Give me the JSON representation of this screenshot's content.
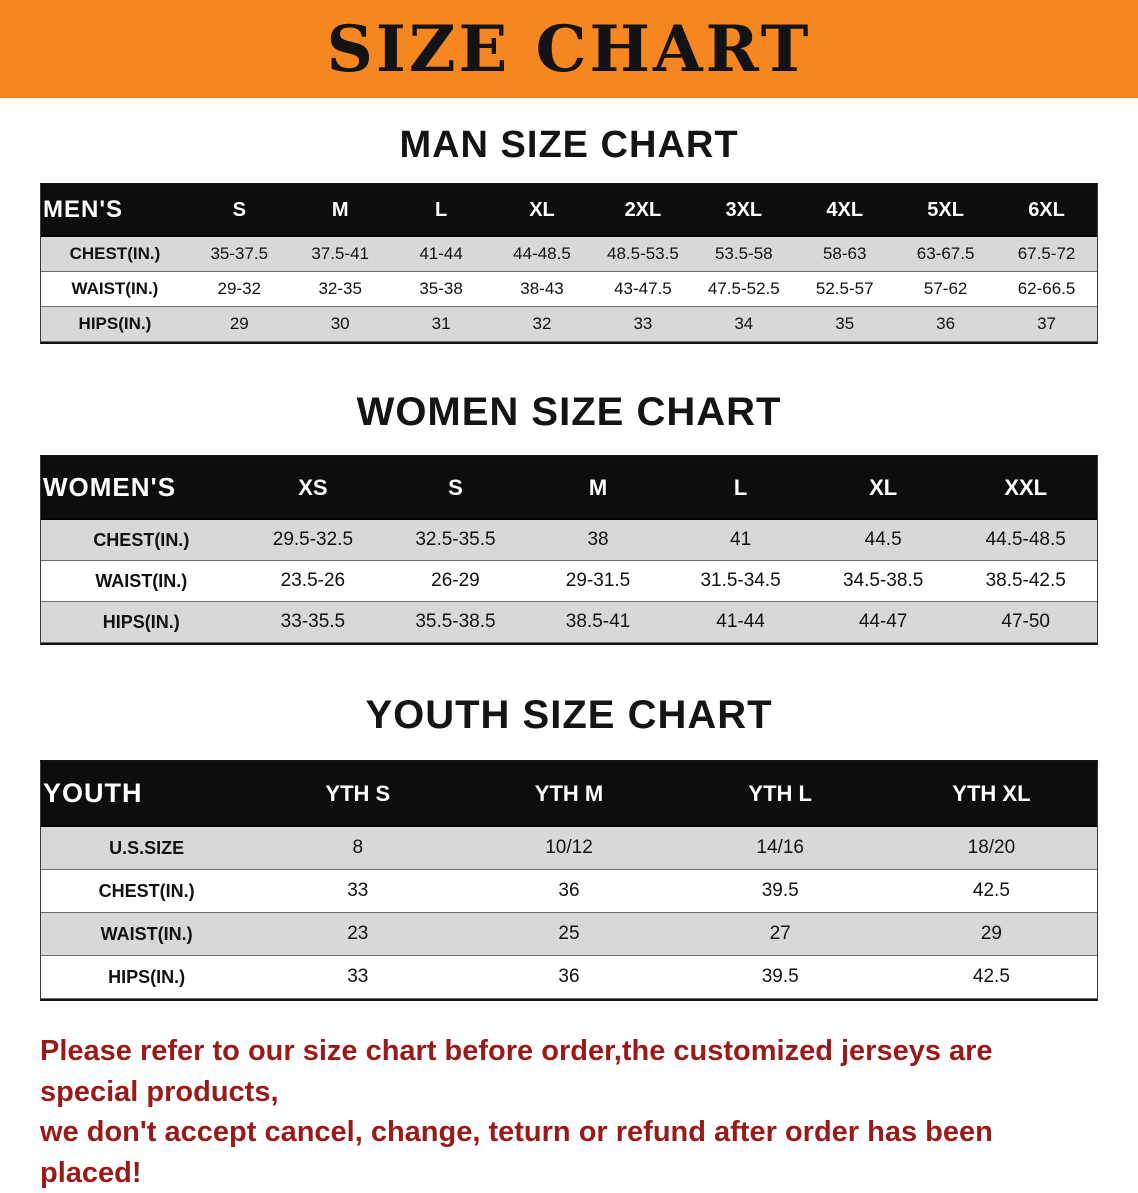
{
  "banner": {
    "title": "SIZE CHART"
  },
  "colors": {
    "banner_bg": "#F6861F",
    "header_bg": "#0d0d0d",
    "shaded_row": "#d8d8d8",
    "footer_text": "#9a1a1a"
  },
  "sections": [
    {
      "id": "men",
      "title": "MAN SIZE CHART",
      "table": {
        "header": [
          "MEN'S",
          "S",
          "M",
          "L",
          "XL",
          "2XL",
          "3XL",
          "4XL",
          "5XL",
          "6XL"
        ],
        "rows": [
          {
            "label": "CHEST(IN.)",
            "shaded": true,
            "values": [
              "35-37.5",
              "37.5-41",
              "41-44",
              "44-48.5",
              "48.5-53.5",
              "53.5-58",
              "58-63",
              "63-67.5",
              "67.5-72"
            ]
          },
          {
            "label": "WAIST(IN.)",
            "shaded": false,
            "values": [
              "29-32",
              "32-35",
              "35-38",
              "38-43",
              "43-47.5",
              "47.5-52.5",
              "52.5-57",
              "57-62",
              "62-66.5"
            ]
          },
          {
            "label": "HIPS(IN.)",
            "shaded": true,
            "values": [
              "29",
              "30",
              "31",
              "32",
              "33",
              "34",
              "35",
              "36",
              "37"
            ]
          }
        ]
      }
    },
    {
      "id": "women",
      "title": "WOMEN SIZE CHART",
      "table": {
        "header": [
          "WOMEN'S",
          "XS",
          "S",
          "M",
          "L",
          "XL",
          "XXL"
        ],
        "rows": [
          {
            "label": "CHEST(IN.)",
            "shaded": true,
            "values": [
              "29.5-32.5",
              "32.5-35.5",
              "38",
              "41",
              "44.5",
              "44.5-48.5"
            ]
          },
          {
            "label": "WAIST(IN.)",
            "shaded": false,
            "values": [
              "23.5-26",
              "26-29",
              "29-31.5",
              "31.5-34.5",
              "34.5-38.5",
              "38.5-42.5"
            ]
          },
          {
            "label": "HIPS(IN.)",
            "shaded": true,
            "values": [
              "33-35.5",
              "35.5-38.5",
              "38.5-41",
              "41-44",
              "44-47",
              "47-50"
            ]
          }
        ]
      }
    },
    {
      "id": "youth",
      "title": "YOUTH SIZE CHART",
      "table": {
        "header": [
          "YOUTH",
          "YTH S",
          "YTH M",
          "YTH L",
          "YTH XL"
        ],
        "rows": [
          {
            "label": "U.S.SIZE",
            "shaded": true,
            "values": [
              "8",
              "10/12",
              "14/16",
              "18/20"
            ]
          },
          {
            "label": "CHEST(IN.)",
            "shaded": false,
            "values": [
              "33",
              "36",
              "39.5",
              "42.5"
            ]
          },
          {
            "label": "WAIST(IN.)",
            "shaded": true,
            "values": [
              "23",
              "25",
              "27",
              "29"
            ]
          },
          {
            "label": "HIPS(IN.)",
            "shaded": false,
            "values": [
              "33",
              "36",
              "39.5",
              "42.5"
            ]
          }
        ]
      }
    }
  ],
  "footer": {
    "lines": [
      "Please refer to our size chart before order,the customized jerseys are special products,",
      "we don't accept cancel, change, teturn or refund after order has been placed!"
    ]
  }
}
